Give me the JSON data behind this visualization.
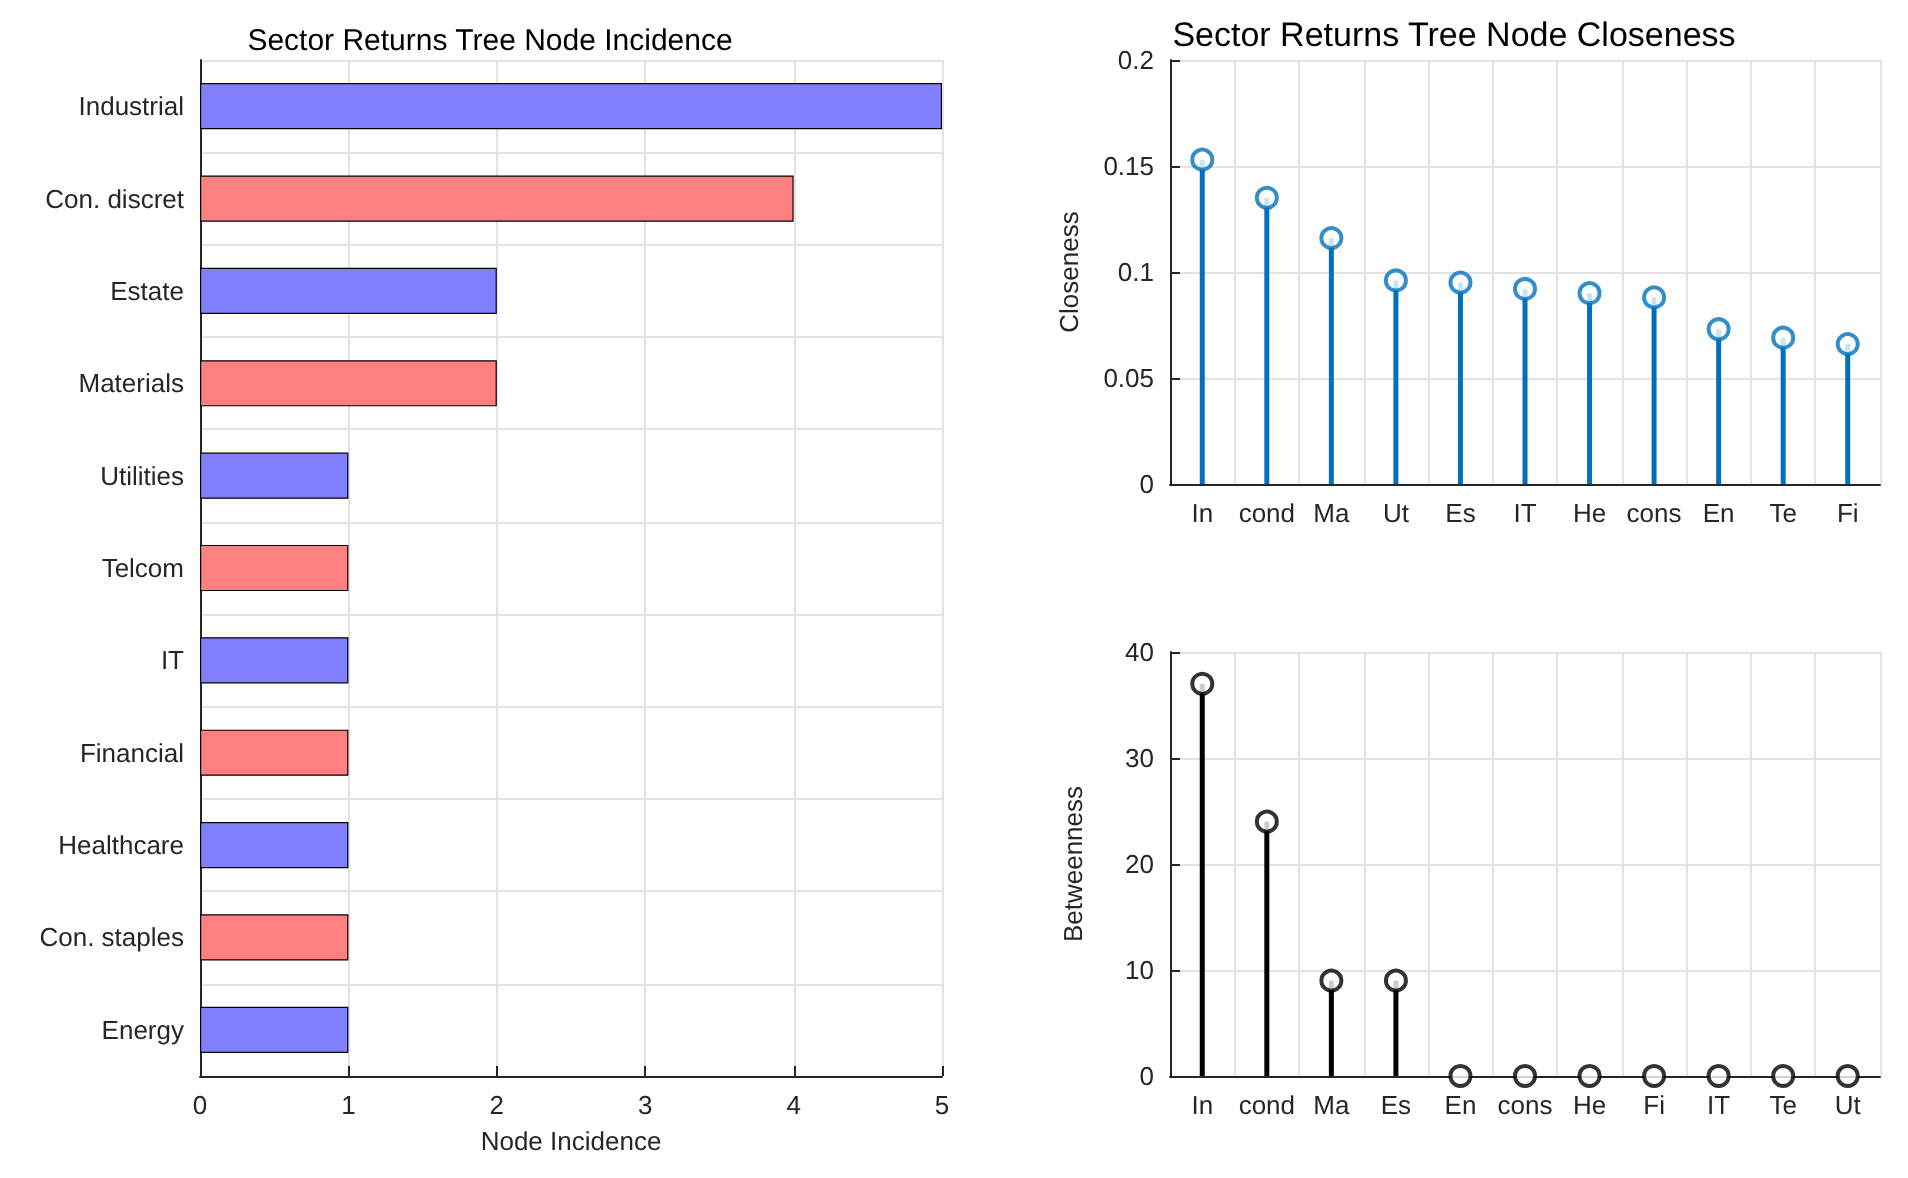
{
  "chart_data": [
    {
      "type": "bar",
      "orientation": "horizontal",
      "title": "Sector Returns Tree Node Incidence",
      "xlabel": "Node Incidence",
      "categories": [
        "Industrial",
        "Con. discret",
        "Estate",
        "Materials",
        "Utilities",
        "Telcom",
        "IT",
        "Financial",
        "Healthcare",
        "Con. staples",
        "Energy"
      ],
      "values": [
        5,
        4,
        2,
        2,
        1,
        1,
        1,
        1,
        1,
        1,
        1
      ],
      "colors": [
        "#8080ff",
        "#ff8080",
        "#8080ff",
        "#ff8080",
        "#8080ff",
        "#ff8080",
        "#8080ff",
        "#ff8080",
        "#8080ff",
        "#ff8080",
        "#8080ff"
      ],
      "xlim": [
        0,
        5
      ],
      "xticks": [
        0,
        1,
        2,
        3,
        4,
        5
      ],
      "grid": true
    },
    {
      "type": "lollipop",
      "title": "Sector Returns Tree Node Closeness",
      "ylabel": "Closeness",
      "categories": [
        "In",
        "cond",
        "Ma",
        "Ut",
        "Es",
        "IT",
        "He",
        "cons",
        "En",
        "Te",
        "Fi"
      ],
      "series": [
        {
          "color": "#0072bd",
          "values": [
            0.153,
            0.135,
            0.116,
            0.096,
            0.095,
            0.092,
            0.09,
            0.088,
            0.073,
            0.069,
            0.066
          ]
        }
      ],
      "ylim": [
        0,
        0.2
      ],
      "yticks": [
        0,
        0.05,
        0.1,
        0.15,
        0.2
      ],
      "grid": true,
      "marker": "circle"
    },
    {
      "type": "lollipop",
      "ylabel": "Betweenness",
      "categories": [
        "In",
        "cond",
        "Ma",
        "Es",
        "En",
        "cons",
        "He",
        "Fi",
        "IT",
        "Te",
        "Ut"
      ],
      "series": [
        {
          "color": "#000000",
          "values": [
            37,
            24,
            9,
            9,
            0,
            0,
            0,
            0,
            0,
            0,
            0
          ]
        }
      ],
      "ylim": [
        0,
        40
      ],
      "yticks": [
        0,
        10,
        20,
        30,
        40
      ],
      "grid": true,
      "marker": "circle"
    }
  ]
}
